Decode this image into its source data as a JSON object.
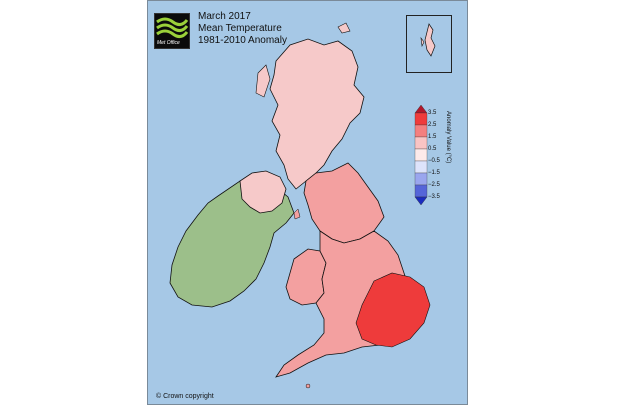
{
  "title": {
    "line1": "March 2017",
    "line2": "Mean Temperature",
    "line3": "1981-2010 Anomaly"
  },
  "logo": {
    "text": "Met Office",
    "icon": "met-office-logo-icon"
  },
  "legend": {
    "title": "Anomaly Value (°C)",
    "ticks": [
      "3.5",
      "2.5",
      "1.5",
      "0.5",
      "−0.5",
      "−1.5",
      "−2.5",
      "−3.5"
    ],
    "colors": [
      "#b2182b",
      "#ef3b3b",
      "#f47f7f",
      "#f9c4c4",
      "#fdeaea",
      "#dde3fb",
      "#9aa6ee",
      "#5565d9",
      "#1b2cbf"
    ]
  },
  "copyright": "© Crown copyright",
  "colors": {
    "sea": "#a6c8e6",
    "ireland": "#9cbf8a",
    "anomaly_high": "#ee3b3b",
    "anomaly_mid": "#f3a0a0",
    "anomaly_low": "#f6c9c9"
  }
}
